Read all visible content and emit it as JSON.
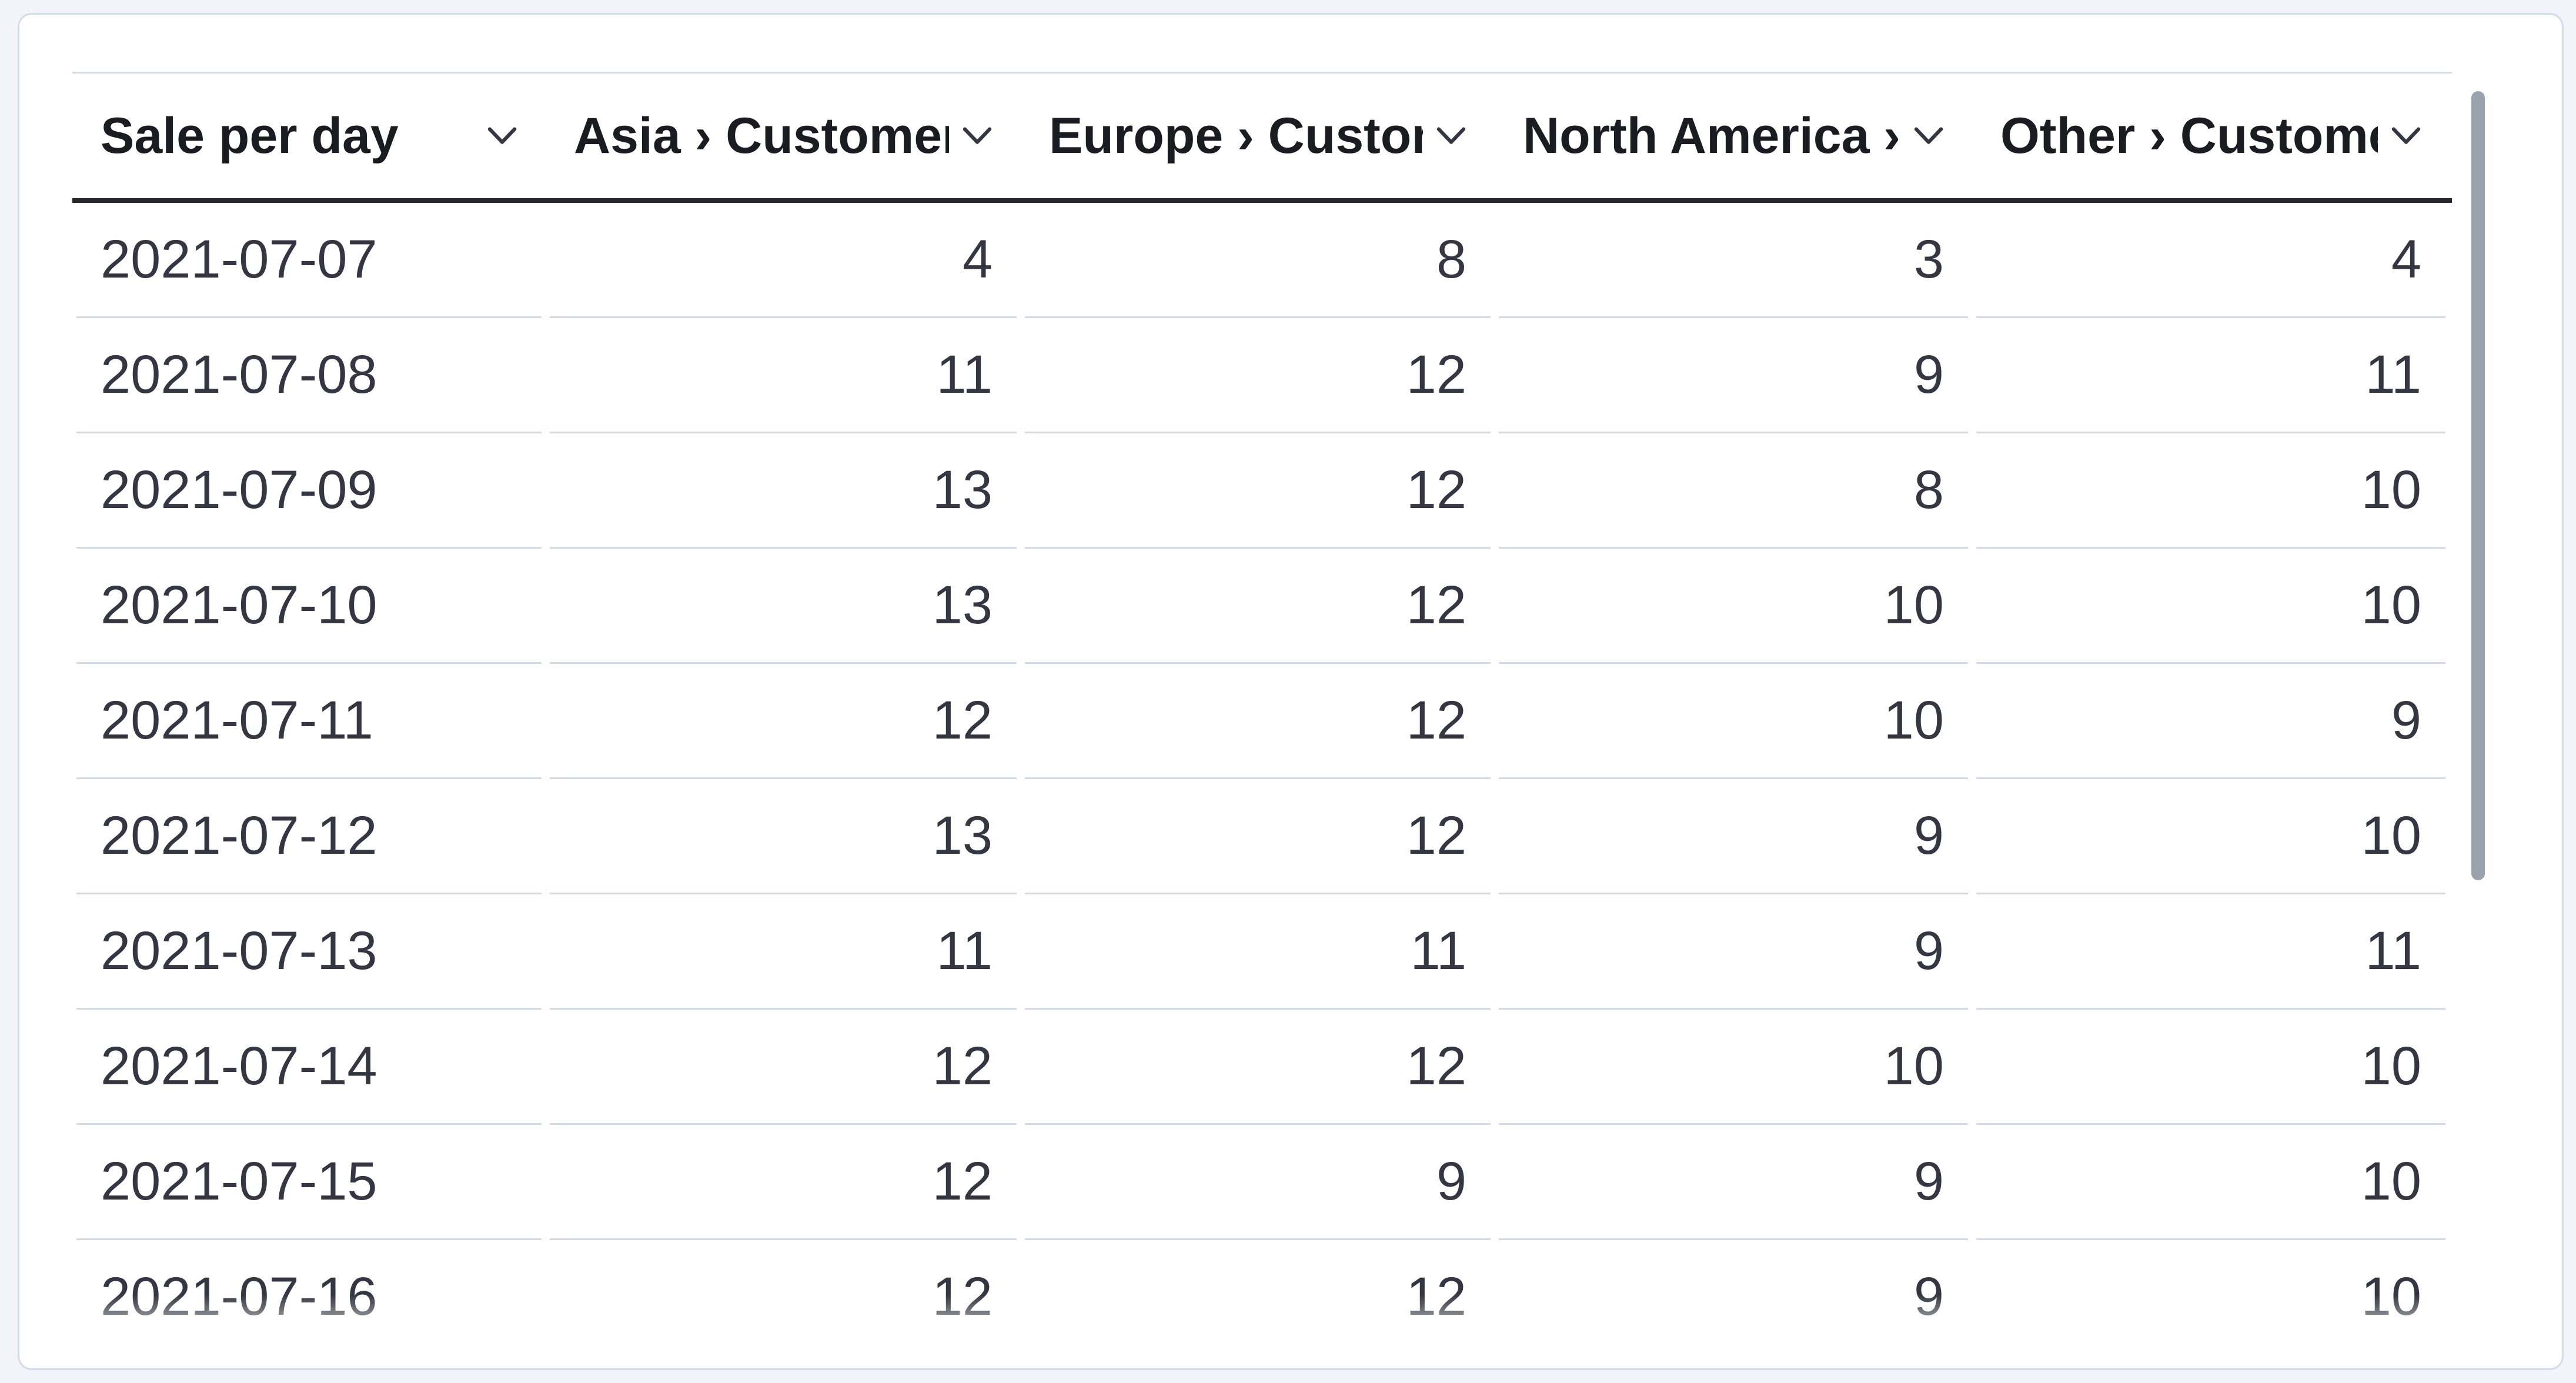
{
  "table": {
    "columns": [
      {
        "label": "Sale per day",
        "align": "left"
      },
      {
        "label": "Asia › Customers",
        "align": "right"
      },
      {
        "label": "Europe › Customers",
        "align": "right"
      },
      {
        "label": "North America › Customers",
        "align": "right"
      },
      {
        "label": "Other › Customers",
        "align": "right"
      }
    ],
    "rows": [
      [
        "2021-07-07",
        "4",
        "8",
        "3",
        "4"
      ],
      [
        "2021-07-08",
        "11",
        "12",
        "9",
        "11"
      ],
      [
        "2021-07-09",
        "13",
        "12",
        "8",
        "10"
      ],
      [
        "2021-07-10",
        "13",
        "12",
        "10",
        "10"
      ],
      [
        "2021-07-11",
        "12",
        "12",
        "10",
        "9"
      ],
      [
        "2021-07-12",
        "13",
        "12",
        "9",
        "10"
      ],
      [
        "2021-07-13",
        "11",
        "11",
        "9",
        "11"
      ],
      [
        "2021-07-14",
        "12",
        "12",
        "10",
        "10"
      ],
      [
        "2021-07-15",
        "12",
        "9",
        "9",
        "10"
      ],
      [
        "2021-07-16",
        "12",
        "12",
        "9",
        "10"
      ]
    ]
  },
  "icons": {
    "column_menu": "chevron-down"
  },
  "colors": {
    "page_background": "#f2f4f9",
    "card_background": "#ffffff",
    "card_border": "#d3dce8",
    "row_separator": "#d3dae6",
    "header_rule": "#25262e",
    "text": "#343741",
    "header_text": "#1a1c21",
    "scrollbar_thumb": "#9aa2ad"
  }
}
